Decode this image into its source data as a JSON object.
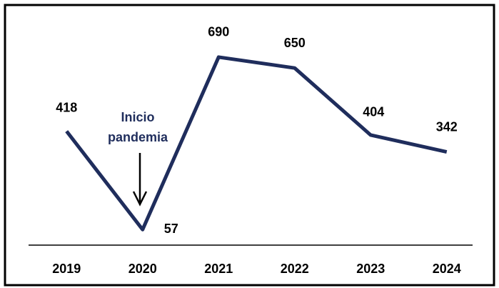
{
  "chart_data": {
    "type": "line",
    "categories": [
      "2019",
      "2020",
      "2021",
      "2022",
      "2023",
      "2024"
    ],
    "values": [
      418,
      57,
      690,
      650,
      404,
      342
    ],
    "color": "#1f2d5c",
    "ylim": [
      0,
      800
    ],
    "annotation": [
      "Inicio",
      "pandemia"
    ]
  }
}
